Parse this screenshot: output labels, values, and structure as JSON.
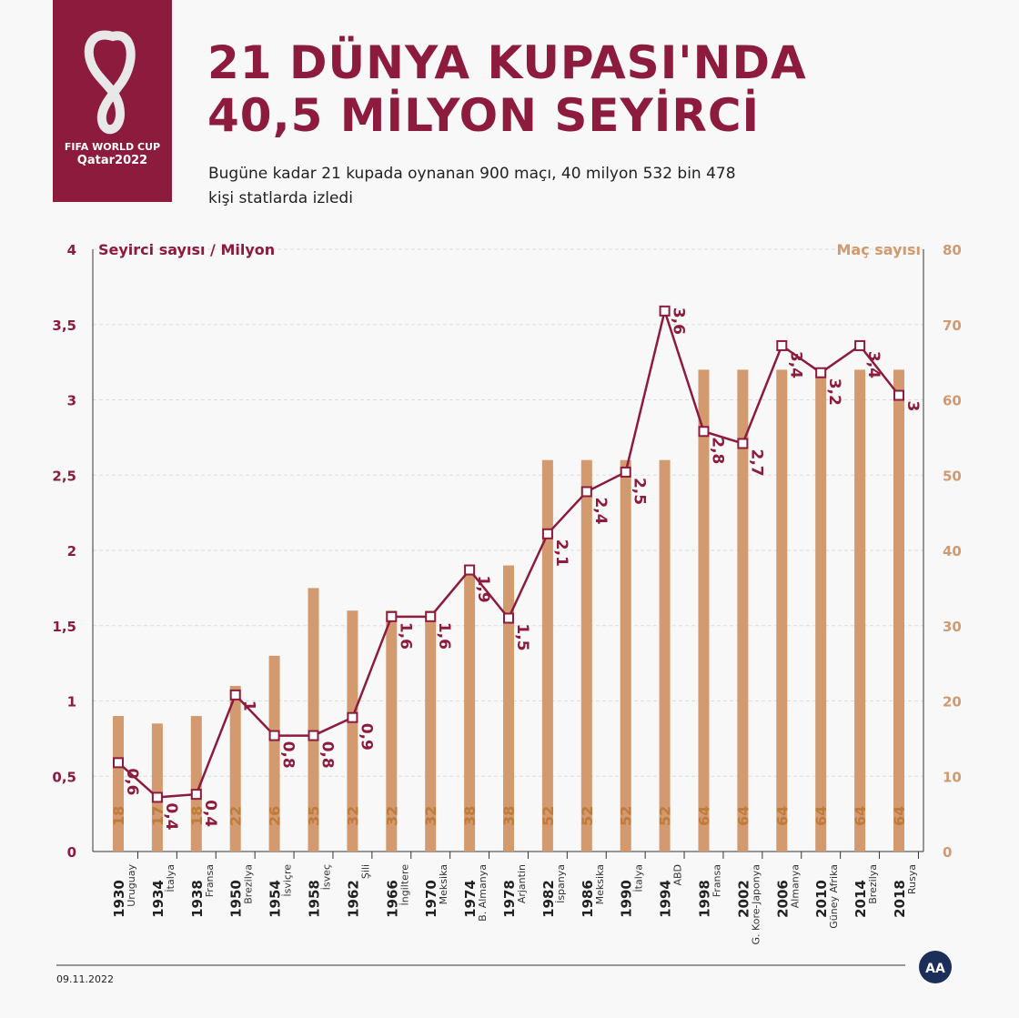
{
  "header": {
    "title_line1": "21 DÜNYA KUPASI'NDA",
    "title_line2": "40,5 MİLYON SEYİRCİ",
    "subtitle": "Bugüne kadar 21 kupada oynanan 900 maçı, 40 milyon 532 bin 478 kişi statlarda izledi"
  },
  "logo": {
    "line1": "FIFA WORLD CUP",
    "line2": "Qatar2022"
  },
  "footer": {
    "date": "09.11.2022",
    "agency_logo": "AA"
  },
  "colors": {
    "brand": "#8d1b3d",
    "bars": "#d29a6e",
    "bar_labels": "#c07a3a"
  },
  "chart_data": {
    "type": "bar+line",
    "left_axis": {
      "label": "Seyirci sayısı / Milyon",
      "range": [
        0,
        4
      ],
      "ticks": [
        "0",
        "0,5",
        "1",
        "1,5",
        "2",
        "2,5",
        "3",
        "3,5",
        "4"
      ]
    },
    "right_axis": {
      "label": "Maç sayısı",
      "range": [
        0,
        80
      ],
      "ticks": [
        "0",
        "10",
        "20",
        "30",
        "40",
        "50",
        "60",
        "70",
        "80"
      ]
    },
    "grid": true,
    "categories": [
      {
        "year": "1930",
        "host": "Uruguay"
      },
      {
        "year": "1934",
        "host": "İtalya"
      },
      {
        "year": "1938",
        "host": "Fransa"
      },
      {
        "year": "1950",
        "host": "Brezilya"
      },
      {
        "year": "1954",
        "host": "İsviçre"
      },
      {
        "year": "1958",
        "host": "İsveç"
      },
      {
        "year": "1962",
        "host": "Şili"
      },
      {
        "year": "1966",
        "host": "İngiltere"
      },
      {
        "year": "1970",
        "host": "Meksika"
      },
      {
        "year": "1974",
        "host": "B. Almanya"
      },
      {
        "year": "1978",
        "host": "Arjantin"
      },
      {
        "year": "1982",
        "host": "İspanya"
      },
      {
        "year": "1986",
        "host": "Meksika"
      },
      {
        "year": "1990",
        "host": "İtalya"
      },
      {
        "year": "1994",
        "host": "ABD"
      },
      {
        "year": "1998",
        "host": "Fransa"
      },
      {
        "year": "2002",
        "host": "G. Kore-Japonya"
      },
      {
        "year": "2006",
        "host": "Almanya"
      },
      {
        "year": "2010",
        "host": "Güney Afrika"
      },
      {
        "year": "2014",
        "host": "Brezilya"
      },
      {
        "year": "2018",
        "host": "Rusya"
      }
    ],
    "series": [
      {
        "name": "Maç sayısı",
        "type": "bar",
        "axis": "right",
        "values": [
          18,
          17,
          18,
          22,
          26,
          35,
          32,
          32,
          32,
          38,
          38,
          52,
          52,
          52,
          52,
          64,
          64,
          64,
          64,
          64,
          64
        ]
      },
      {
        "name": "Seyirci sayısı / Milyon",
        "type": "line",
        "axis": "left",
        "values": [
          0.59,
          0.36,
          0.38,
          1.04,
          0.77,
          0.77,
          0.89,
          1.56,
          1.56,
          1.87,
          1.55,
          2.11,
          2.39,
          2.52,
          3.59,
          2.79,
          2.71,
          3.36,
          3.18,
          3.36,
          3.03
        ],
        "labels": [
          "0,6",
          "0,4",
          "0,4",
          "1",
          "0,8",
          "0,8",
          "0,9",
          "1,6",
          "1,6",
          "1,9",
          "1,5",
          "2,1",
          "2,4",
          "2,5",
          "3,6",
          "2,8",
          "2,7",
          "3,4",
          "3,2",
          "3,4",
          "3"
        ]
      }
    ]
  }
}
